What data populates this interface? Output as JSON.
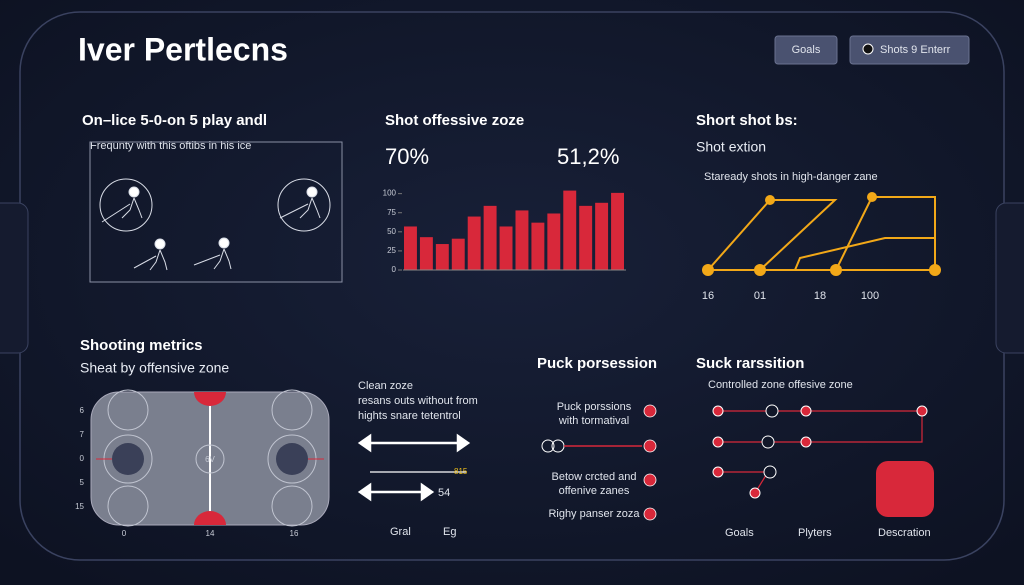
{
  "header": {
    "title": "Iver Pertlecns",
    "buttons": [
      "Goals",
      "Shots 9 Enterr"
    ]
  },
  "panel_play": {
    "title": "On–lice 5-0-on 5 play andl",
    "caption": "Frequnty with this oftibs in his ice"
  },
  "panel_shot": {
    "title": "Shot offessive zoze",
    "stats": [
      "70%",
      "51,2%"
    ],
    "chart": {
      "type": "bar",
      "color": "#d8283a",
      "values": [
        57,
        43,
        34,
        41,
        70,
        84,
        57,
        78,
        62,
        74,
        104,
        84,
        88,
        101
      ],
      "ylim": [
        0,
        110
      ],
      "yticks": [
        0,
        25,
        50,
        75,
        100
      ]
    }
  },
  "panel_short": {
    "title": "Short shot bs:",
    "subtitle": "Shot extion",
    "caption": "Staready shots in high-danger zane",
    "x_labels": [
      "16",
      "01",
      "18",
      "100"
    ]
  },
  "panel_metrics": {
    "title": "Shooting metrics",
    "subtitle": "Sheat by offensive zone",
    "y_labels": [
      "6",
      "7",
      "0",
      "5",
      "15"
    ],
    "x_labels": [
      "0",
      "14",
      "16"
    ],
    "center_label": "6V"
  },
  "panel_clean": {
    "lines": [
      "Clean zoze",
      "resans outs without from",
      "hights snare tetentrol"
    ],
    "value_a": "815",
    "value_b": "54",
    "footer": [
      "Gral",
      "Eg"
    ]
  },
  "panel_puck": {
    "title": "Puck porsession",
    "items": [
      "Puck porssions\nwith tormatival",
      "Betow crcted and\noffenive zanes",
      "Righy panser zoza"
    ]
  },
  "panel_transition": {
    "title": "Suck rarssition",
    "subtitle": "Controlled zone offesive zone",
    "footer": [
      "Goals",
      "Plyters",
      "Descration"
    ]
  }
}
